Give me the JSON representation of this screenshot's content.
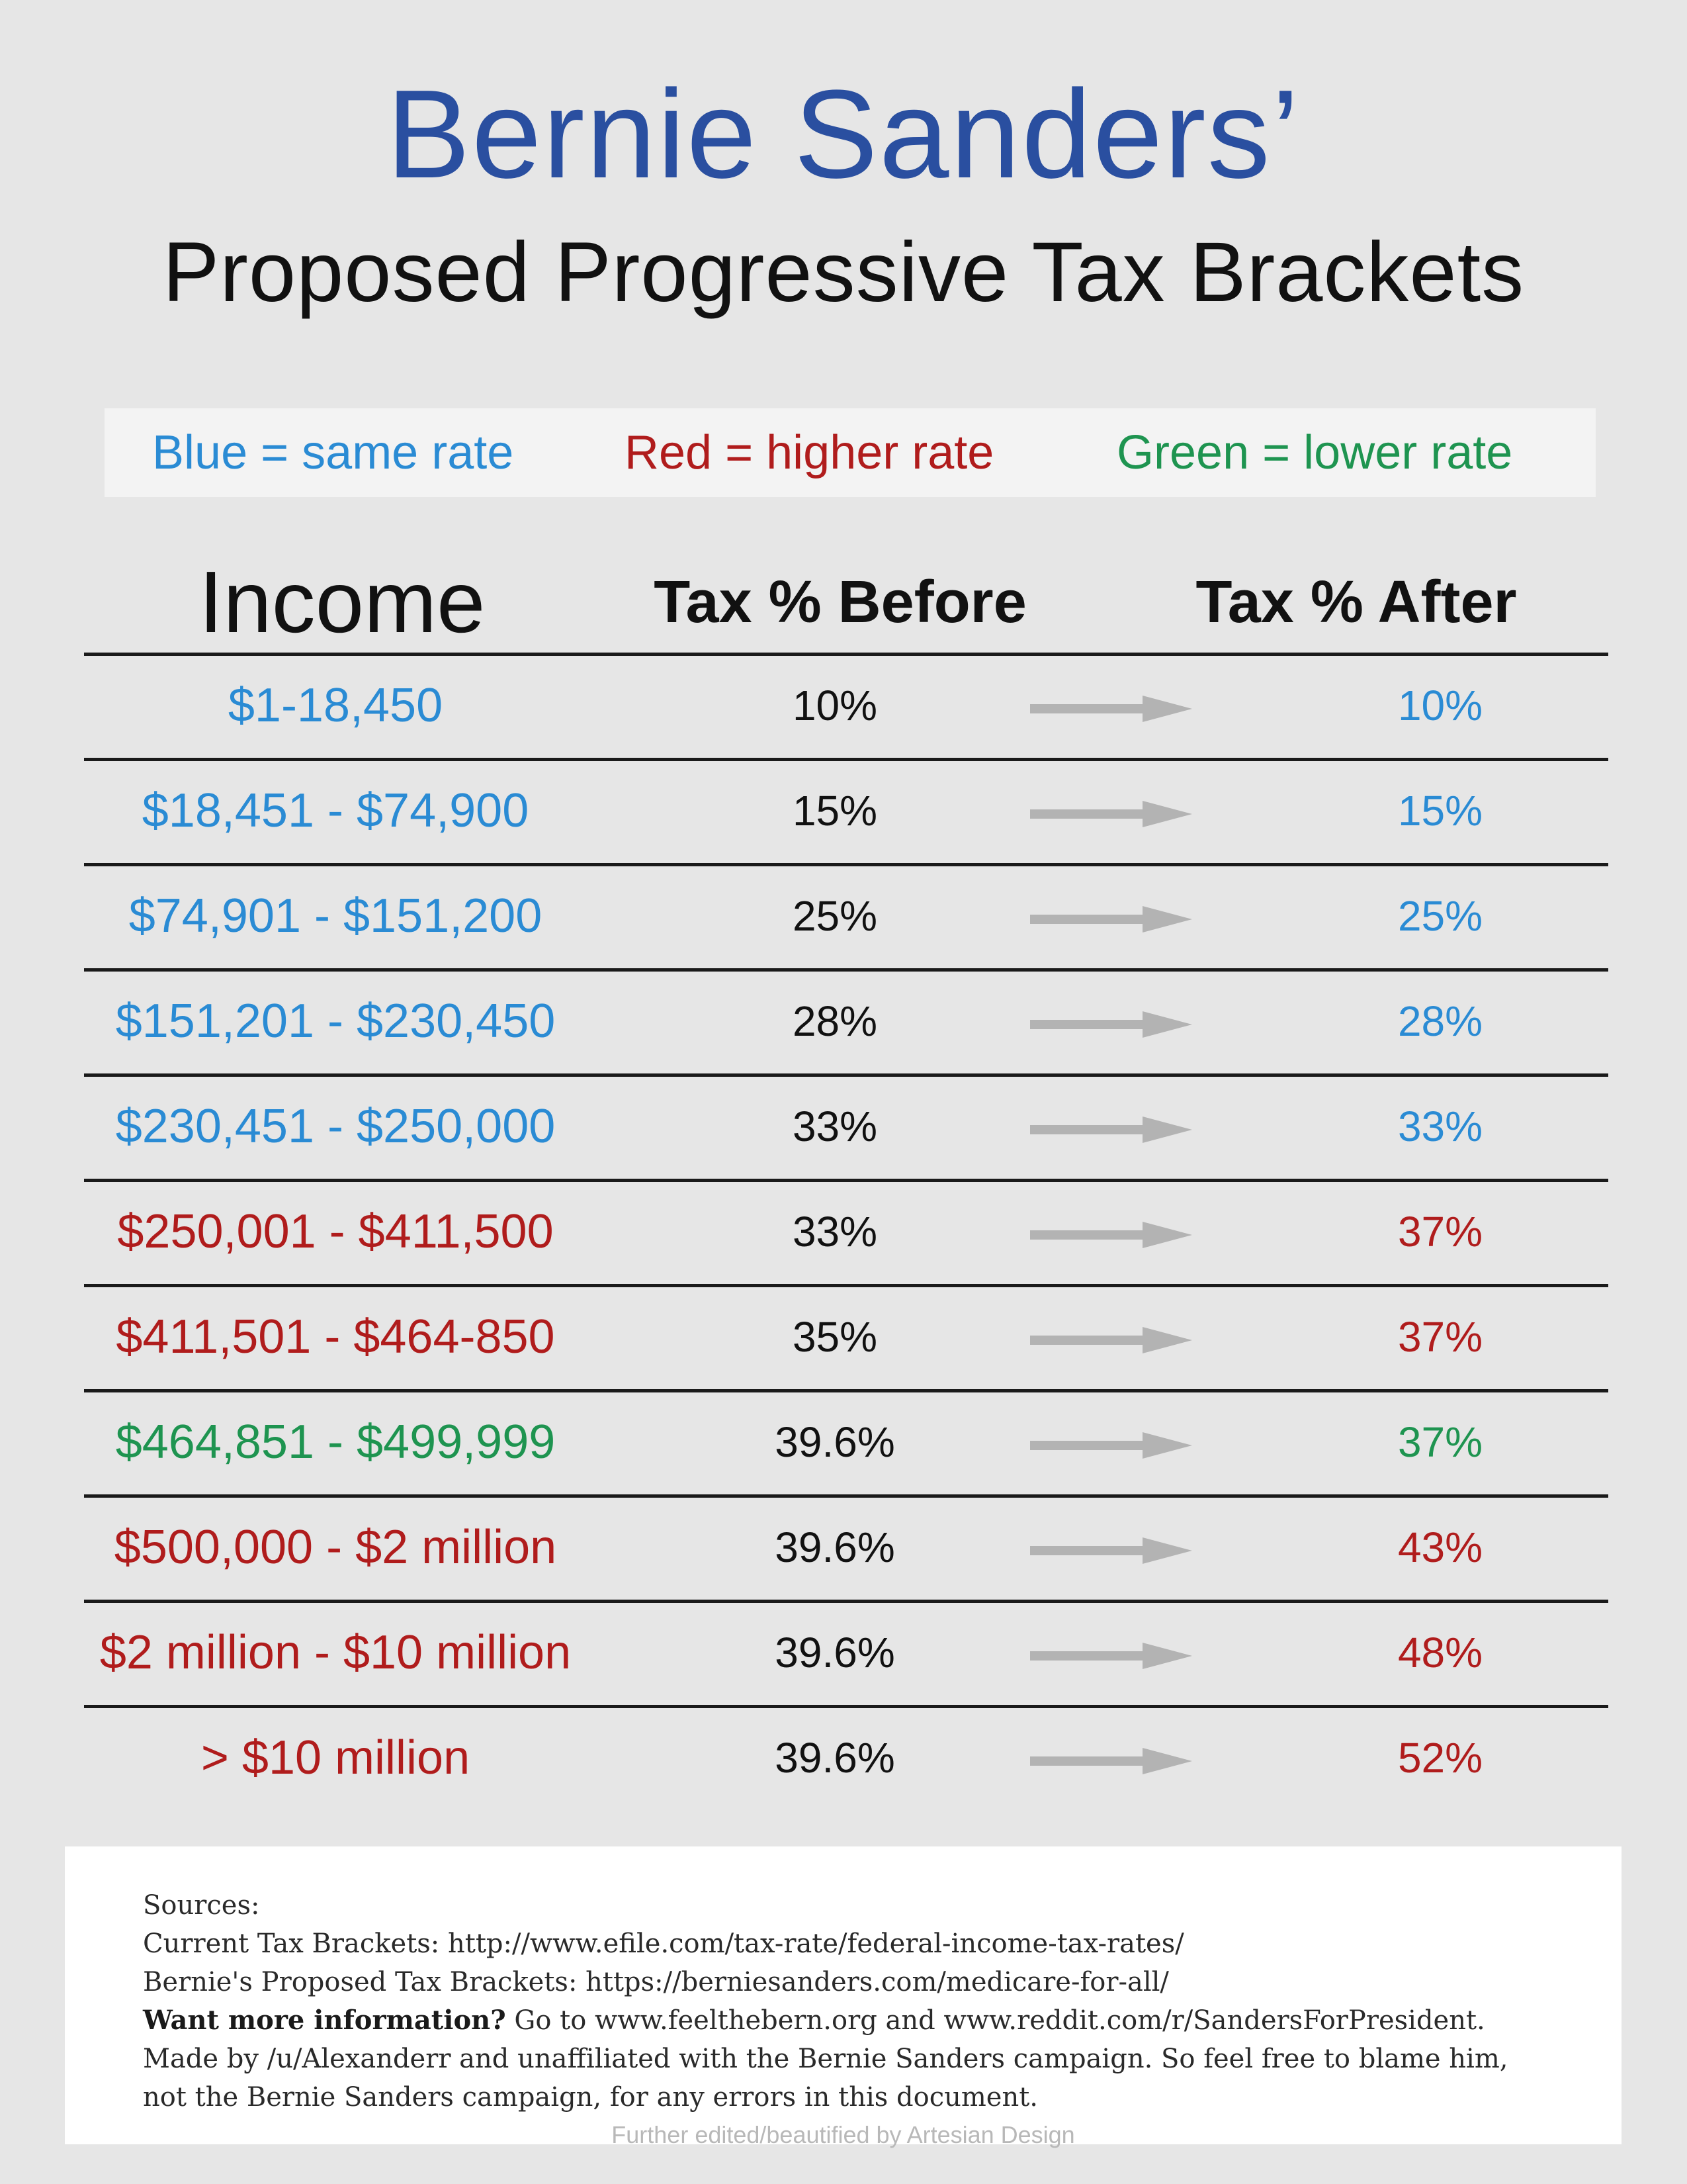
{
  "title": "Bernie Sanders’",
  "subtitle": "Proposed Progressive Tax Brackets",
  "legend": {
    "blue": "Blue = same rate",
    "red": "Red = higher rate",
    "green": "Green = lower rate"
  },
  "colors": {
    "blue": "#2a8bd4",
    "red": "#b01c1c",
    "green": "#1e9450",
    "title": "#2a4fa0"
  },
  "headers": {
    "income": "Income",
    "before": "Tax % Before",
    "after": "Tax % After"
  },
  "rows": [
    {
      "income": "$1-18,450",
      "before": "10%",
      "after": "10%",
      "color": "blue"
    },
    {
      "income": "$18,451 - $74,900",
      "before": "15%",
      "after": "15%",
      "color": "blue"
    },
    {
      "income": "$74,901 - $151,200",
      "before": "25%",
      "after": "25%",
      "color": "blue"
    },
    {
      "income": "$151,201 - $230,450",
      "before": "28%",
      "after": "28%",
      "color": "blue"
    },
    {
      "income": "$230,451 - $250,000",
      "before": "33%",
      "after": "33%",
      "color": "blue"
    },
    {
      "income": "$250,001 - $411,500",
      "before": "33%",
      "after": "37%",
      "color": "red"
    },
    {
      "income": "$411,501 - $464-850",
      "before": "35%",
      "after": "37%",
      "color": "red"
    },
    {
      "income": "$464,851 - $499,999",
      "before": "39.6%",
      "after": "37%",
      "color": "green"
    },
    {
      "income": "$500,000 - $2 million",
      "before": "39.6%",
      "after": "43%",
      "color": "red"
    },
    {
      "income": "$2 million - $10 million",
      "before": "39.6%",
      "after": "48%",
      "color": "red"
    },
    {
      "income": "> $10 million",
      "before": "39.6%",
      "after": "52%",
      "color": "red"
    }
  ],
  "sources": {
    "heading": "Sources:",
    "current": "Current Tax Brackets: http://www.efile.com/tax-rate/federal-income-tax-rates/",
    "proposed": "Bernie's Proposed Tax Brackets: https://berniesanders.com/medicare-for-all/",
    "more_bold": "Want more information?",
    "more_rest": " Go to www.feelthebern.org and www.reddit.com/r/SandersForPresident.",
    "made_by_1": "Made by /u/Alexanderr and unaffiliated with the Bernie Sanders campaign. So feel free to blame him,",
    "made_by_2": "not the Bernie Sanders campaign, for any errors in this document.",
    "credit": "Further edited/beautified by Artesian Design"
  }
}
